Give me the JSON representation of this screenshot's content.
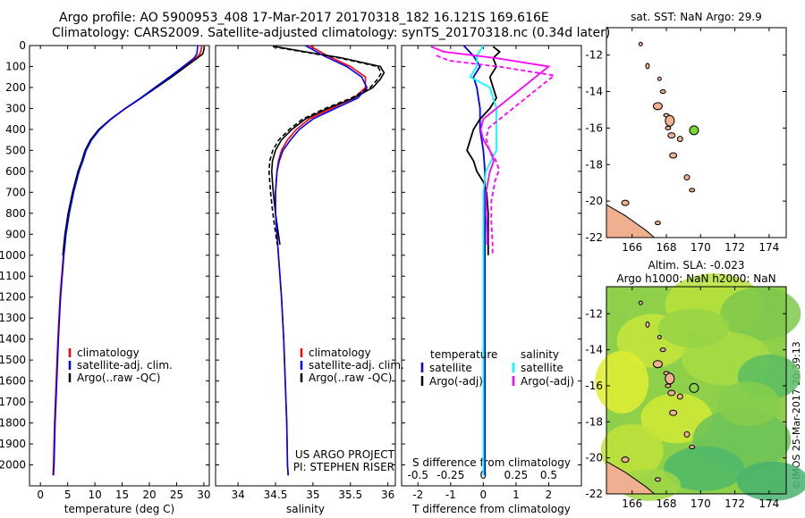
{
  "header": {
    "title_line1": "Argo profile: AO 5900953_408 17-Mar-2017 20170318_182 16.121S 169.616E",
    "title_line2": "Climatology: CARS2009. Satellite-adjusted climatology: synTS_20170318.nc (0.34d later)"
  },
  "colors": {
    "climatology": "#ff0000",
    "satellite": "#0000ff",
    "argo": "#000000",
    "satellite_salinity": "#00ffff",
    "argo_salinity": "#ff00ff",
    "land": "#f0b090",
    "sst_marker": "#7fd62e"
  },
  "sidebar_note": "©IMOS 25-Mar-2017 20:39:13",
  "chart_data": [
    {
      "type": "line",
      "xlabel": "temperature (deg C)",
      "ylabel": "",
      "xlim": [
        -2,
        31
      ],
      "ylim": [
        2100,
        0
      ],
      "xticks": [
        "0",
        "5",
        "10",
        "15",
        "20",
        "25",
        "30"
      ],
      "yticks": [
        "0",
        "100",
        "200",
        "300",
        "400",
        "500",
        "600",
        "700",
        "800",
        "900",
        "1000",
        "1100",
        "1200",
        "1300",
        "1400",
        "1500",
        "1600",
        "1700",
        "1800",
        "1900",
        "2000"
      ],
      "legend": {
        "placement": "bottom-center",
        "entries": [
          "climatology",
          "satellite-adj. clim.",
          "Argo(..raw -QC)"
        ]
      },
      "series": [
        {
          "name": "climatology",
          "depth": [
            0,
            20,
            40,
            60,
            100,
            150,
            200,
            250,
            300,
            350,
            400,
            450,
            500,
            550,
            600,
            700,
            800,
            900,
            1000,
            1200,
            1400,
            1600,
            1800,
            2000,
            2050
          ],
          "values": [
            29.6,
            29.5,
            29.3,
            28.5,
            26.5,
            24.0,
            21.2,
            18.5,
            15.6,
            13.0,
            10.8,
            9.3,
            8.3,
            7.7,
            7.0,
            6.0,
            5.2,
            4.6,
            4.2,
            3.6,
            3.2,
            2.9,
            2.6,
            2.4,
            2.3
          ]
        },
        {
          "name": "satellite-adj. clim.",
          "depth": [
            0,
            20,
            40,
            60,
            100,
            150,
            200,
            250,
            300,
            350,
            400,
            450,
            500,
            550,
            600,
            700,
            800,
            900,
            1000,
            1200,
            1400,
            1600,
            1800,
            2000,
            2050
          ],
          "values": [
            28.9,
            28.8,
            28.7,
            28.2,
            26.2,
            23.7,
            21.0,
            18.4,
            15.6,
            13.0,
            10.9,
            9.4,
            8.4,
            7.8,
            7.1,
            6.1,
            5.3,
            4.7,
            4.3,
            3.7,
            3.3,
            3.0,
            2.7,
            2.5,
            2.4
          ]
        },
        {
          "name": "Argo(..raw -QC)",
          "depth": [
            5,
            20,
            40,
            60,
            100,
            150,
            200,
            250,
            300,
            350,
            400,
            450,
            500,
            550,
            600,
            700,
            800,
            900,
            1000
          ],
          "values": [
            30.1,
            30.0,
            29.8,
            28.8,
            26.7,
            24.1,
            21.3,
            18.5,
            15.6,
            12.9,
            10.7,
            9.2,
            8.2,
            7.6,
            6.9,
            5.9,
            5.1,
            4.5,
            4.1
          ]
        }
      ]
    },
    {
      "type": "line",
      "xlabel": "salinity",
      "ylabel": "",
      "xlim": [
        33.7,
        36.1
      ],
      "ylim": [
        2100,
        0
      ],
      "xticks": [
        "34",
        "34.5",
        "35",
        "35.5",
        "36"
      ],
      "legend": {
        "placement": "bottom-center",
        "entries": [
          "climatology",
          "satellite-adj. clim.",
          "Argo(..raw -QC)"
        ]
      },
      "annotation": [
        "US ARGO PROJECT",
        "PI: STEPHEN RISER"
      ],
      "series": [
        {
          "name": "climatology",
          "depth": [
            0,
            50,
            100,
            150,
            200,
            250,
            300,
            350,
            400,
            450,
            500,
            550,
            600,
            700,
            800,
            900,
            1000,
            1200,
            1400,
            1600,
            1800,
            2000,
            2050
          ],
          "values": [
            34.95,
            35.2,
            35.5,
            35.7,
            35.7,
            35.55,
            35.25,
            34.95,
            34.78,
            34.66,
            34.58,
            34.54,
            34.52,
            34.5,
            34.5,
            34.52,
            34.54,
            34.58,
            34.61,
            34.63,
            34.65,
            34.66,
            34.67
          ]
        },
        {
          "name": "satellite-adj. clim.",
          "depth": [
            0,
            50,
            100,
            150,
            200,
            250,
            300,
            350,
            400,
            450,
            500,
            550,
            600,
            700,
            800,
            900,
            1000,
            1200,
            1400,
            1600,
            1800,
            2000,
            2050
          ],
          "values": [
            34.9,
            35.15,
            35.45,
            35.65,
            35.72,
            35.6,
            35.3,
            35.0,
            34.82,
            34.7,
            34.6,
            34.55,
            34.52,
            34.5,
            34.5,
            34.52,
            34.54,
            34.58,
            34.61,
            34.63,
            34.65,
            34.66,
            34.67
          ]
        },
        {
          "name": "Argo(..raw -QC)",
          "depth": [
            5,
            30,
            60,
            100,
            130,
            160,
            200,
            250,
            300,
            350,
            400,
            450,
            500,
            550,
            600,
            650,
            700,
            800,
            900,
            950
          ],
          "values": [
            34.5,
            34.9,
            35.4,
            35.9,
            35.95,
            35.9,
            35.8,
            35.55,
            35.2,
            34.9,
            34.72,
            34.58,
            34.5,
            34.46,
            34.45,
            34.46,
            34.47,
            34.5,
            34.54,
            34.56
          ]
        }
      ]
    },
    {
      "type": "line",
      "xlabel": "T difference from climatology",
      "xlabel_top": "S difference from climatology",
      "xlim": [
        -2.5,
        3
      ],
      "ylim": [
        2100,
        0
      ],
      "xticks": [
        "-2",
        "-1",
        "0",
        "1",
        "2"
      ],
      "xticks_top": [
        "-0.5",
        "-0.25",
        "0",
        "0.25",
        "0.5"
      ],
      "legend": {
        "placement": "bottom-center",
        "headers": [
          "temperature",
          "salinity"
        ],
        "entries": [
          "satellite",
          "Argo(-adj)",
          "satellite",
          "Argo(-adj)"
        ]
      },
      "series": [
        {
          "name": "temperature satellite",
          "depth": [
            0,
            50,
            100,
            150,
            200,
            300,
            400,
            500,
            600,
            700,
            800,
            1000,
            1200,
            1500,
            1800,
            2000,
            2050
          ],
          "values": [
            -0.6,
            -0.3,
            -0.1,
            -0.3,
            -0.2,
            -0.1,
            -0.1,
            0.0,
            0.05,
            0.05,
            0.05,
            0.05,
            0.05,
            0.05,
            0.05,
            0.05,
            0.05
          ]
        },
        {
          "name": "temperature Argo(-adj)",
          "depth": [
            5,
            30,
            60,
            100,
            150,
            200,
            250,
            300,
            350,
            400,
            450,
            500,
            550,
            600,
            650,
            700,
            800,
            900,
            1000
          ],
          "values": [
            0.3,
            0.5,
            0.3,
            0.4,
            0.2,
            0.3,
            0.4,
            0.2,
            -0.1,
            -0.3,
            -0.4,
            -0.5,
            -0.3,
            -0.2,
            0.0,
            0.1,
            0.15,
            0.15,
            0.15
          ]
        },
        {
          "name": "salinity satellite",
          "depth": [
            0,
            50,
            100,
            150,
            200,
            300,
            400,
            500,
            600,
            700,
            800,
            1000,
            1200,
            1500,
            1800,
            2000,
            2050
          ],
          "values": [
            0.0,
            -0.05,
            -0.05,
            -0.1,
            0.05,
            0.1,
            0.1,
            0.1,
            0.02,
            0.0,
            0.0,
            0.0,
            0.0,
            0.0,
            0.0,
            0.0,
            0.0
          ]
        },
        {
          "name": "salinity Argo(-adj)",
          "depth": [
            5,
            30,
            60,
            100,
            150,
            200,
            250,
            300,
            350,
            400,
            450,
            500,
            550,
            600,
            700,
            800,
            900,
            950
          ],
          "values": [
            -0.4,
            -0.3,
            0.1,
            0.5,
            0.4,
            0.3,
            0.2,
            0.1,
            0.0,
            -0.02,
            0.0,
            0.05,
            0.08,
            0.05,
            0.02,
            0.02,
            0.03,
            0.03
          ]
        }
      ]
    },
    {
      "type": "scatter",
      "title": "sat. SST: NaN Argo: 29.9",
      "xlim": [
        164.5,
        175
      ],
      "ylim": [
        -22,
        -10.5
      ],
      "xticks": [
        "166",
        "168",
        "170",
        "172",
        "174"
      ],
      "yticks": [
        "-12",
        "-14",
        "-16",
        "-18",
        "-20",
        "-22"
      ],
      "marker": {
        "x": 169.616,
        "y": -16.121
      }
    },
    {
      "type": "heatmap",
      "title_line1": "Altim. SLA: -0.023",
      "title_line2": "Argo h1000: NaN h2000: NaN",
      "xlim": [
        164.5,
        175
      ],
      "ylim": [
        -22,
        -10.5
      ],
      "xticks": [
        "166",
        "168",
        "170",
        "172",
        "174"
      ],
      "yticks": [
        "-12",
        "-14",
        "-16",
        "-18",
        "-20",
        "-22"
      ],
      "marker": {
        "x": 169.616,
        "y": -16.121
      }
    }
  ]
}
